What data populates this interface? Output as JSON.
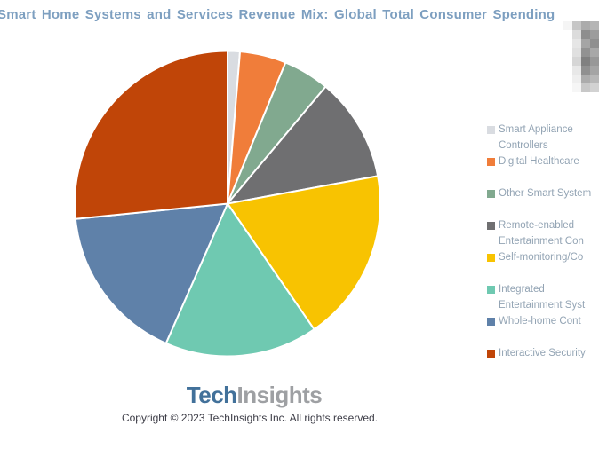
{
  "title": "Smart Home Systems and Services Revenue Mix: Global Total Consumer Spending",
  "colors": {
    "title_text": "#7D9FC0",
    "legend_text": "#93A4B4",
    "logo_tech": "#42719A",
    "logo_insights": "#9EA0A3",
    "copyright_text": "#3C3C46",
    "slice_border": "#FFFFFF"
  },
  "chart_data": {
    "type": "pie",
    "title": "Smart Home Systems and Services Revenue Mix: Global Total Consumer Spending",
    "start_angle_deg": 0,
    "direction": "clockwise",
    "legend_position": "right",
    "units": "percent (estimated from slice angles)",
    "slices": [
      {
        "label": "Smart Appliance Controllers",
        "value": 1.3,
        "color": "#D9DCE1"
      },
      {
        "label": "Digital Healthcare",
        "value": 4.9,
        "color": "#F07D3A"
      },
      {
        "label": "Other Smart System",
        "value": 4.9,
        "color": "#81A98F"
      },
      {
        "label": "Remote-enabled Entertainment Con",
        "value": 11.0,
        "color": "#6F6F71"
      },
      {
        "label": "Self-monitoring/Co",
        "value": 18.3,
        "color": "#F8C301"
      },
      {
        "label": "Integrated Entertainment Syst",
        "value": 16.2,
        "color": "#6FC9B1"
      },
      {
        "label": "Whole-home Cont",
        "value": 16.8,
        "color": "#5F81A9"
      },
      {
        "label": "Interactive Security",
        "value": 26.6,
        "color": "#C04508"
      }
    ]
  },
  "legend": {
    "rows": [
      {
        "kind": "item",
        "color": "#D9DCE1",
        "text": "Smart Appliance"
      },
      {
        "kind": "cont",
        "text": "Controllers"
      },
      {
        "kind": "item",
        "color": "#F07D3A",
        "text": "Digital Healthcare"
      },
      {
        "kind": "spacer"
      },
      {
        "kind": "item",
        "color": "#81A98F",
        "text": "Other Smart System"
      },
      {
        "kind": "spacer"
      },
      {
        "kind": "item",
        "color": "#6F6F71",
        "text": "Remote-enabled"
      },
      {
        "kind": "cont",
        "text": "Entertainment Con"
      },
      {
        "kind": "item",
        "color": "#F8C301",
        "text": "Self-monitoring/Co"
      },
      {
        "kind": "spacer"
      },
      {
        "kind": "item",
        "color": "#6FC9B1",
        "text": "Integrated"
      },
      {
        "kind": "cont",
        "text": "Entertainment Syst"
      },
      {
        "kind": "item",
        "color": "#5F81A9",
        "text": "Whole-home Cont"
      },
      {
        "kind": "spacer"
      },
      {
        "kind": "item",
        "color": "#C04508",
        "text": "Interactive Security"
      }
    ]
  },
  "watermark": {
    "cells": [
      [
        "#F5F5F5",
        "#C6C6C6",
        "#ABABAB",
        "#B5B5B5"
      ],
      [
        "#FFFFFF",
        "#DCDCDC",
        "#8E8E8E",
        "#9C9C9C"
      ],
      [
        "#FFFFFF",
        "#E6E6E6",
        "#A5A5A5",
        "#8F8F8F"
      ],
      [
        "#FFFFFF",
        "#E0E0E0",
        "#929292",
        "#A8A8A8"
      ],
      [
        "#FFFFFF",
        "#D6D6D6",
        "#808080",
        "#989898"
      ],
      [
        "#FFFFFF",
        "#E8E8E8",
        "#909090",
        "#A5A5A5"
      ],
      [
        "#FFFFFF",
        "#EFEFEF",
        "#ACACAC",
        "#B8B8B8"
      ],
      [
        "#FFFFFF",
        "#F6F6F6",
        "#C8C8C8",
        "#D2D2D2"
      ]
    ]
  },
  "footer": {
    "logo_part1": "Tech",
    "logo_part2": "Insights",
    "copyright": "Copyright © 2023 TechInsights Inc.  All rights reserved."
  }
}
